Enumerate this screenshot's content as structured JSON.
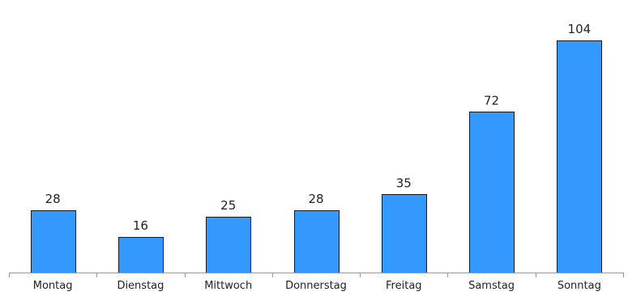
{
  "chart_data": {
    "type": "bar",
    "categories": [
      "Montag",
      "Dienstag",
      "Mittwoch",
      "Donnerstag",
      "Freitag",
      "Samstag",
      "Sonntag"
    ],
    "values": [
      28,
      16,
      25,
      28,
      35,
      72,
      104
    ],
    "ylim": [
      0,
      112
    ],
    "grid": false,
    "legend": "none",
    "bar_color": "#3399ff",
    "bar_outline_color": "#1a1a1a",
    "axis_color": "#999999"
  }
}
